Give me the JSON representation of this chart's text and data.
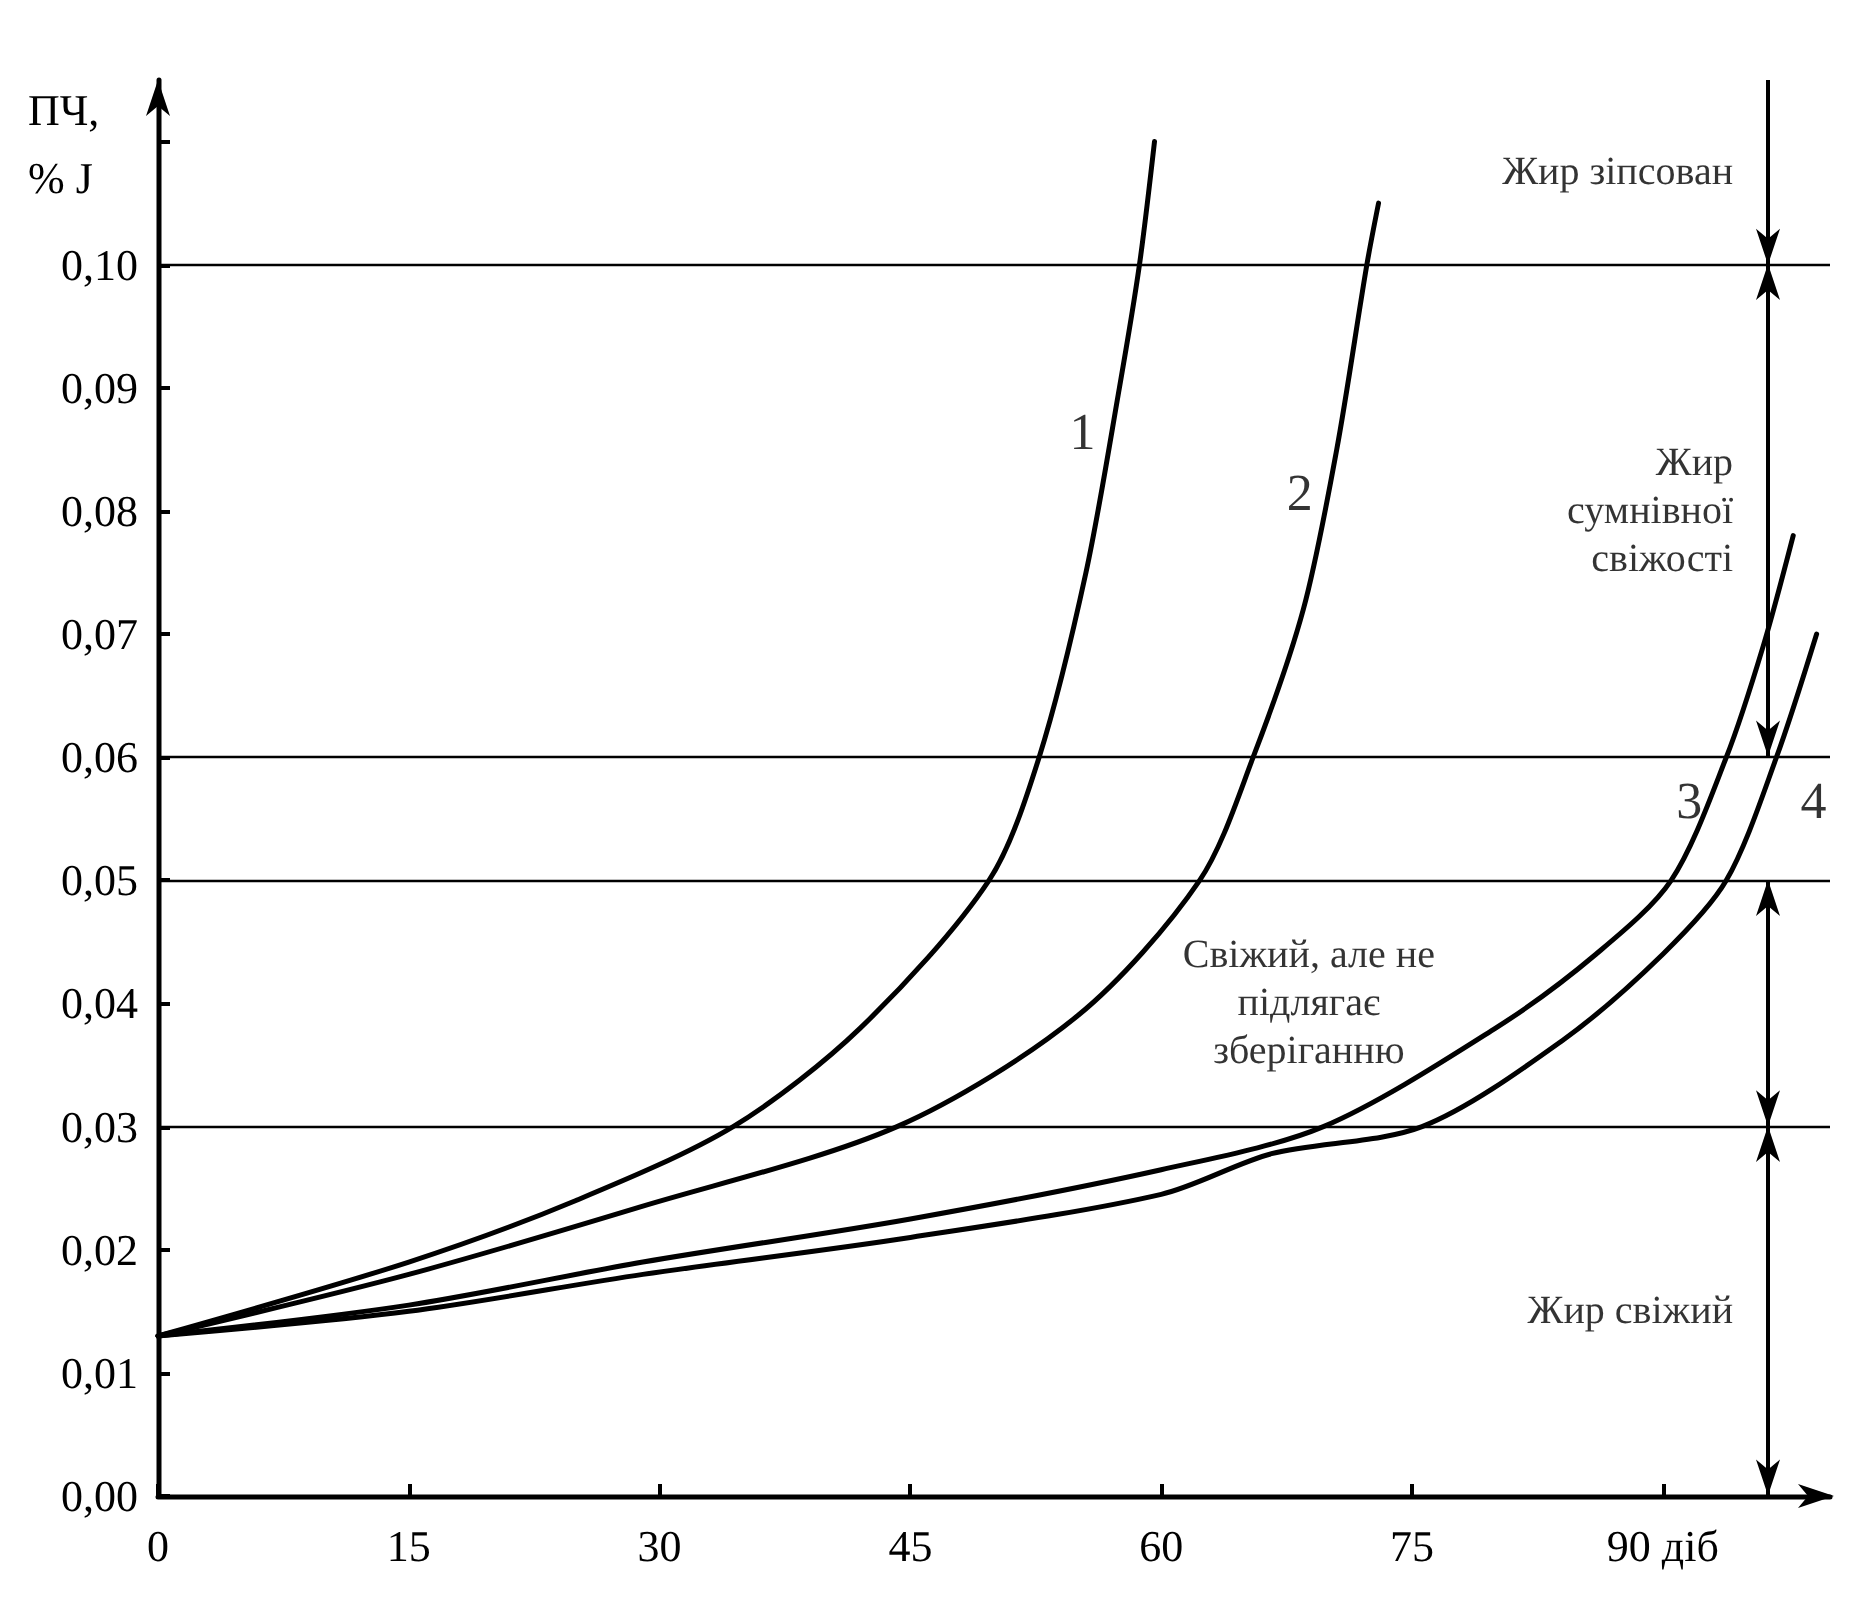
{
  "chart_data": {
    "type": "line",
    "ylabel": "ПЧ,\n% J",
    "xlim": [
      0,
      100
    ],
    "xticks": [
      0,
      15,
      30,
      45,
      60,
      75,
      {
        "value": 90,
        "label": "90 діб"
      }
    ],
    "ylim": [
      0,
      0.115
    ],
    "yticks": [
      {
        "value": 0,
        "label": "0,00"
      },
      {
        "value": 0.01,
        "label": "0,01"
      },
      {
        "value": 0.02,
        "label": "0,02"
      },
      {
        "value": 0.03,
        "label": "0,03"
      },
      {
        "value": 0.04,
        "label": "0,04"
      },
      {
        "value": 0.05,
        "label": "0,05"
      },
      {
        "value": 0.06,
        "label": "0,06"
      },
      {
        "value": 0.07,
        "label": "0,07"
      },
      {
        "value": 0.08,
        "label": "0,08"
      },
      {
        "value": 0.09,
        "label": "0,09"
      },
      {
        "value": 0.1,
        "label": "0,10"
      },
      {
        "value": 0.11,
        "label": null
      }
    ],
    "grid": false,
    "marker": "none",
    "series": [
      {
        "color": "#000000",
        "x": [
          0,
          15,
          25,
          34.4,
          42,
          49.7,
          52.7,
          55.5,
          57.5,
          58.7,
          59.6
        ],
        "values": [
          0.013,
          0.019,
          0.024,
          0.03,
          0.038,
          0.05,
          0.06,
          0.075,
          0.09,
          0.1,
          0.11
        ]
      },
      {
        "color": "#000000",
        "x": [
          0,
          15,
          28.9,
          44.2,
          55,
          62.3,
          65.5,
          68.5,
          70.5,
          72.3,
          73
        ],
        "values": [
          0.013,
          0.018,
          0.0235,
          0.03,
          0.039,
          0.05,
          0.06,
          0.072,
          0.085,
          0.1,
          0.105
        ]
      },
      {
        "color": "#000000",
        "x": [
          0,
          15,
          29,
          45,
          60,
          69.7,
          80,
          86,
          90.5,
          93.8,
          96,
          97.8
        ],
        "values": [
          0.013,
          0.0155,
          0.019,
          0.0225,
          0.0265,
          0.03,
          0.038,
          0.044,
          0.05,
          0.06,
          0.069,
          0.078
        ]
      },
      {
        "color": "#000000",
        "x": [
          0,
          15,
          29,
          45,
          60,
          66.6,
          75.6,
          84,
          90,
          93.8,
          96.8,
          99.2
        ],
        "values": [
          0.013,
          0.015,
          0.018,
          0.021,
          0.0245,
          0.0278,
          0.03,
          0.037,
          0.044,
          0.05,
          0.06,
          0.07
        ]
      }
    ],
    "ref_lines": [
      {
        "axis": "y",
        "value": 0.1
      },
      {
        "axis": "y",
        "value": 0.06
      },
      {
        "axis": "y",
        "value": 0.05
      },
      {
        "axis": "y",
        "value": 0.03
      }
    ],
    "annotations": [
      "Жир зіпсован",
      "Жир\nсумнівної\nсвіжості",
      "Свіжий, але не\nпідлягає\nзберіганню",
      "Жир свіжий",
      {
        "text": "1",
        "x": 57.5,
        "y": 0.09
      },
      {
        "text": "2",
        "x": 70.5,
        "y": 0.085
      },
      {
        "text": "3",
        "x": 93.8,
        "y": 0.06
      },
      {
        "text": "4",
        "x": 96.8,
        "y": 0.06
      }
    ]
  }
}
